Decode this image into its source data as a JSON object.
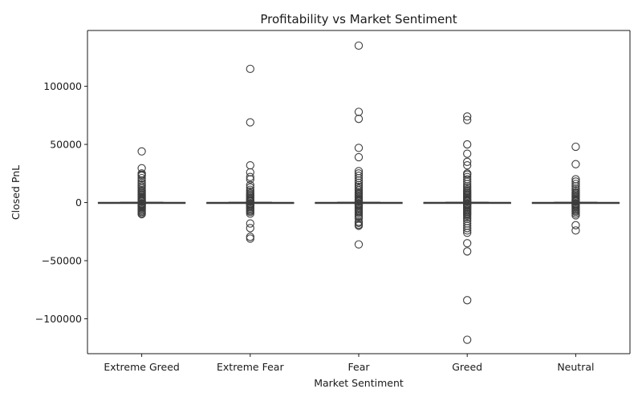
{
  "chart_data": {
    "type": "box",
    "title": "Profitability vs Market Sentiment",
    "xlabel": "Market Sentiment",
    "ylabel": "Closed PnL",
    "ylim": [
      -130000,
      148000
    ],
    "yticks": [
      -100000,
      -50000,
      0,
      50000,
      100000
    ],
    "ytick_labels": [
      "−100000",
      "−50000",
      "0",
      "50000",
      "100000"
    ],
    "grid": false,
    "legend": "none",
    "colors": {
      "box": "#3d3d3d",
      "axis": "#1a1a1a"
    },
    "categories": [
      "Extreme Greed",
      "Extreme Fear",
      "Fear",
      "Greed",
      "Neutral"
    ],
    "boxes": [
      {
        "category": "Extreme Greed",
        "q1": -20,
        "median": 0,
        "q3": 80,
        "whisker_low": -200,
        "whisker_high": 200,
        "outliers": [
          44000,
          29500,
          25000,
          24000,
          23000,
          21000,
          19000,
          17000,
          15500,
          14000,
          12500,
          11000,
          10000,
          9000,
          8000,
          7000,
          6000,
          5000,
          4200,
          3400,
          2700,
          2000,
          1400,
          900,
          -900,
          -1400,
          -2000,
          -2700,
          -3400,
          -4200,
          -5000,
          -6000,
          -7000,
          -8000,
          -9000,
          -10000
        ]
      },
      {
        "category": "Extreme Fear",
        "q1": -20,
        "median": 0,
        "q3": 60,
        "whisker_low": -200,
        "whisker_high": 200,
        "outliers": [
          115000,
          69000,
          32000,
          26000,
          22000,
          20000,
          15000,
          13000,
          11000,
          9500,
          8000,
          7000,
          6000,
          5000,
          4000,
          3000,
          2200,
          1500,
          900,
          -900,
          -1500,
          -2200,
          -3000,
          -4000,
          -5000,
          -6000,
          -7000,
          -8000,
          -9500,
          -18000,
          -22000,
          -29500,
          -31000
        ]
      },
      {
        "category": "Fear",
        "q1": -20,
        "median": 0,
        "q3": 80,
        "whisker_low": -200,
        "whisker_high": 200,
        "outliers": [
          135000,
          78000,
          72000,
          47000,
          39000,
          27000,
          25000,
          23000,
          21000,
          19000,
          17000,
          15000,
          13500,
          12000,
          10500,
          9000,
          8000,
          7000,
          6000,
          5000,
          4000,
          3000,
          2200,
          1500,
          900,
          -900,
          -1500,
          -2200,
          -3000,
          -4000,
          -5000,
          -6000,
          -7000,
          -8000,
          -9000,
          -10500,
          -12000,
          -13500,
          -16500,
          -17500,
          -19000,
          -20000,
          -36000
        ]
      },
      {
        "category": "Greed",
        "q1": -30,
        "median": 0,
        "q3": 90,
        "whisker_low": -250,
        "whisker_high": 250,
        "outliers": [
          74000,
          71000,
          50000,
          42000,
          35000,
          32000,
          25000,
          24000,
          22000,
          20000,
          18000,
          16000,
          14000,
          12500,
          11000,
          10000,
          9000,
          8000,
          7000,
          6000,
          5000,
          4000,
          3000,
          2200,
          1500,
          900,
          -900,
          -1500,
          -2200,
          -3000,
          -4000,
          -5000,
          -6000,
          -7000,
          -8000,
          -9000,
          -10000,
          -11000,
          -12500,
          -14000,
          -16000,
          -18000,
          -20000,
          -22000,
          -24000,
          -26000,
          -35000,
          -42000,
          -84000,
          -118000
        ]
      },
      {
        "category": "Neutral",
        "q1": -20,
        "median": 0,
        "q3": 60,
        "whisker_low": -200,
        "whisker_high": 200,
        "outliers": [
          48000,
          33000,
          20000,
          18000,
          16000,
          14000,
          12000,
          10500,
          9000,
          8000,
          7000,
          6000,
          5000,
          4000,
          3000,
          2200,
          1500,
          900,
          -900,
          -1500,
          -2200,
          -3000,
          -4000,
          -5000,
          -6000,
          -7000,
          -8000,
          -9500,
          -11000,
          -19500,
          -24000
        ]
      }
    ]
  }
}
